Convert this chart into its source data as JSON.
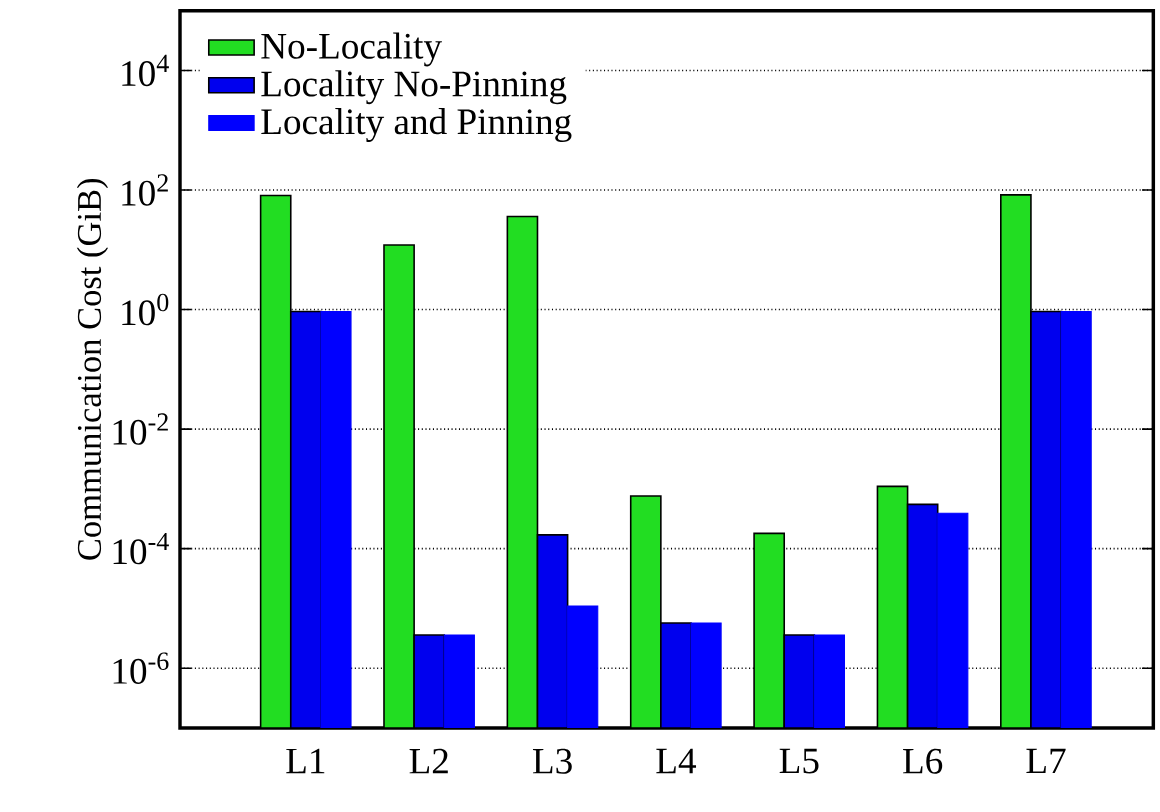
{
  "chart_data": {
    "type": "bar",
    "ylabel": "Communication Cost (GiB)",
    "log": "y",
    "categories": [
      "L1",
      "L2",
      "L3",
      "L4",
      "L5",
      "L6",
      "L7"
    ],
    "series": [
      {
        "name": "No-Locality",
        "color": "#22dd22",
        "values": [
          81,
          12,
          36,
          0.00076,
          0.00018,
          0.0011,
          83
        ]
      },
      {
        "name": "Locality No-Pinning",
        "color": "#0000ee",
        "values": [
          0.93,
          3.6e-06,
          0.00017,
          5.7e-06,
          3.6e-06,
          0.00055,
          0.93
        ]
      },
      {
        "name": "Locality and Pinning",
        "color": "#0000ff",
        "values": [
          0.93,
          3.6e-06,
          1.1e-05,
          5.7e-06,
          3.6e-06,
          0.00039,
          0.93
        ]
      }
    ],
    "ylim": [
      1e-07,
      100000.0
    ],
    "yticks": [
      {
        "value": 1e-06,
        "label": "10$^{-6}$"
      },
      {
        "value": 0.0001,
        "label": "10$^{-4}$"
      },
      {
        "value": 0.01,
        "label": "10$^{-2}$"
      },
      {
        "value": 1,
        "label": "10$^{0}$"
      },
      {
        "value": 100,
        "label": "10$^{2}$"
      },
      {
        "value": 10000,
        "label": "10$^{4}$"
      }
    ],
    "grid": "y",
    "legend": "top left"
  }
}
